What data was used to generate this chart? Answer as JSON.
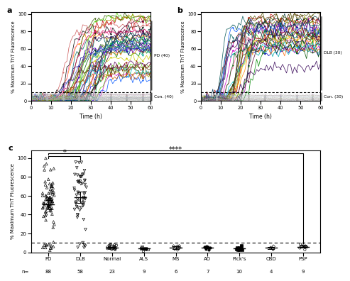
{
  "panel_a_label": "a",
  "panel_b_label": "b",
  "panel_c_label": "c",
  "pd_label": "PD (40)",
  "con_a_label": "Con. (40)",
  "dlb_label": "DLB (30)",
  "con_b_label": "Con. (30)",
  "ylabel_ab": "% Maximum ThT Fluorescence",
  "xlabel_ab": "Time (h)",
  "ylabel_c": "% Maximum ThT Fluorescence",
  "threshold_line": 10,
  "categories": [
    "PD",
    "DLB",
    "Normal",
    "ALS",
    "MS",
    "AD",
    "Pick's",
    "CBD",
    "PSP"
  ],
  "n_values": [
    88,
    58,
    23,
    9,
    6,
    7,
    10,
    4,
    9
  ],
  "sig_pd_dlb": "*",
  "sig_bracket": "****",
  "colors_pd": [
    "#000000",
    "#cc0000",
    "#008800",
    "#0000cc",
    "#cc00cc",
    "#ff8800",
    "#00aaaa",
    "#aa00aa",
    "#aaaa00",
    "#ff66aa",
    "#0055ff",
    "#55cc00",
    "#ff6600",
    "#00cccc",
    "#cccc00",
    "#880000",
    "#000088",
    "#005500",
    "#880088",
    "#666600",
    "#006666",
    "#553300",
    "#003355",
    "#335500",
    "#550033",
    "#003333",
    "#330055",
    "#555500",
    "#005555",
    "#550055",
    "#cc5500",
    "#00aa55",
    "#5500cc",
    "#cc0055",
    "#0055cc",
    "#55cc00",
    "#cc5555",
    "#55cc55",
    "#5555cc",
    "#aa8800"
  ],
  "colors_dlb": [
    "#888888",
    "#cc0000",
    "#008800",
    "#0000cc",
    "#cc00cc",
    "#ff8800",
    "#00aaaa",
    "#aa00aa",
    "#aaaa00",
    "#ff66aa",
    "#0055ff",
    "#55cc00",
    "#ff6600",
    "#00cccc",
    "#cccc00",
    "#880000",
    "#000088",
    "#005500",
    "#880088",
    "#666600",
    "#006666",
    "#553300",
    "#003355",
    "#335500",
    "#550033",
    "#003333",
    "#330055",
    "#555500",
    "#005555",
    "#550055"
  ],
  "colors_con_a": [
    "#aaaaaa",
    "#bbbbbb",
    "#cccccc",
    "#999999",
    "#888888",
    "#aabbcc",
    "#bbccaa",
    "#ccaabb",
    "#aaccbb",
    "#bbaacc",
    "#ccbbaa",
    "#aabbaa",
    "#bbaaaa",
    "#aaaacc",
    "#bbccbb",
    "#ccbbcc",
    "#aaabbb",
    "#bbbccc",
    "#ccccaa",
    "#ababab",
    "#bcbcbc",
    "#cdcdcd",
    "#ababcc",
    "#bcbcaa",
    "#cdcdbb",
    "#acabac",
    "#bbcabc",
    "#ccabca",
    "#acabba",
    "#bcacab",
    "#cdbacd",
    "#acabca",
    "#bcabac",
    "#cdacba",
    "#acbaca",
    "#bcacbc",
    "#aabb99",
    "#99bbaa",
    "#bbaa99",
    "#99aabb"
  ],
  "colors_con_b": [
    "#aaaaaa",
    "#bbbbbb",
    "#cccccc",
    "#999999",
    "#888888",
    "#aabbcc",
    "#bbccaa",
    "#ccaabb",
    "#aaccbb",
    "#bbaacc",
    "#ccbbaa",
    "#aabbaa",
    "#bbaaaa",
    "#aaaacc",
    "#bbccbb",
    "#ccbbcc",
    "#aaabbb",
    "#bbbccc",
    "#ccccaa",
    "#ababab",
    "#bcbcbc",
    "#cdcdcd",
    "#ababcc",
    "#bcbcaa",
    "#cdcdbb",
    "#acabac",
    "#bbcabc",
    "#ccabca",
    "#acabba",
    "#bcacab"
  ]
}
